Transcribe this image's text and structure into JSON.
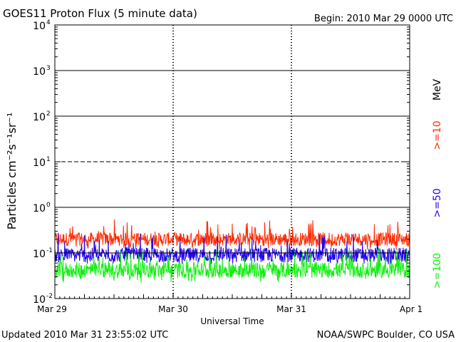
{
  "chart_data": {
    "type": "line",
    "title": "GOES11 Proton Flux (5 minute data)",
    "begin_label": "Begin: 2010 Mar 29 0000 UTC",
    "xlabel": "Universal Time",
    "ylabel": "Particles cm⁻²s⁻¹sr⁻¹",
    "y_scale": "log",
    "ylim": [
      0.01,
      10000
    ],
    "y_ticks": [
      {
        "value": 0.01,
        "base": "10",
        "exp": "-2"
      },
      {
        "value": 0.1,
        "base": "10",
        "exp": "-1"
      },
      {
        "value": 1,
        "base": "10",
        "exp": "0"
      },
      {
        "value": 10,
        "base": "10",
        "exp": "1"
      },
      {
        "value": 100,
        "base": "10",
        "exp": "2"
      },
      {
        "value": 1000,
        "base": "10",
        "exp": "3"
      },
      {
        "value": 10000,
        "base": "10",
        "exp": "4"
      }
    ],
    "x_ticks": [
      {
        "day": 0,
        "label": "Mar 29"
      },
      {
        "day": 1,
        "label": "Mar 30"
      },
      {
        "day": 2,
        "label": "Mar 31"
      },
      {
        "day": 3,
        "label": "Apr 1"
      }
    ],
    "xlim_days": [
      0,
      3
    ],
    "data_end_day": 3,
    "unit_label": "MeV",
    "series": [
      {
        "name": ">=10",
        "color": "#ff2a00",
        "median": 0.2,
        "min": 0.12,
        "max": 0.55
      },
      {
        "name": ">=50",
        "color": "#2200ee",
        "median": 0.09,
        "min": 0.055,
        "max": 0.28
      },
      {
        "name": ">=100",
        "color": "#11ee11",
        "median": 0.042,
        "min": 0.022,
        "max": 0.13
      }
    ]
  },
  "footer": {
    "updated": "Updated 2010 Mar 31 23:55:02 UTC",
    "credit": "NOAA/SWPC Boulder, CO USA"
  }
}
